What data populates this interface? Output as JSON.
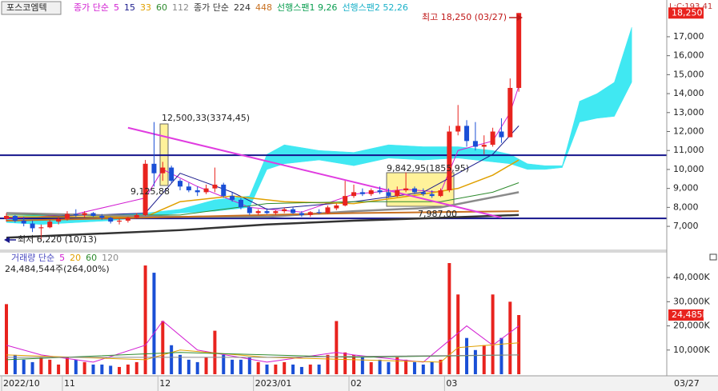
{
  "chart_data": {
    "type": "candlestick",
    "stock_name": "포스코엠텍",
    "note": "L:C:193,41",
    "categories": [
      "2022/10",
      null,
      null,
      null,
      null,
      null,
      null,
      "11",
      null,
      null,
      null,
      null,
      null,
      null,
      null,
      null,
      null,
      null,
      "12",
      null,
      null,
      null,
      null,
      null,
      null,
      null,
      null,
      null,
      null,
      "2023/01",
      null,
      null,
      null,
      null,
      null,
      null,
      null,
      null,
      null,
      null,
      "02",
      null,
      null,
      null,
      null,
      null,
      null,
      null,
      null,
      null,
      null,
      "03",
      null,
      null,
      null,
      null,
      null,
      null,
      null,
      null
    ],
    "last_date": "03/27",
    "open": [
      7400,
      7550,
      7300,
      7150,
      6900,
      6950,
      7250,
      7400,
      7650,
      7600,
      7700,
      7550,
      7450,
      7250,
      7300,
      7450,
      7600,
      10300,
      9800,
      10100,
      9400,
      9100,
      8900,
      8800,
      9000,
      9200,
      8600,
      8400,
      8000,
      7700,
      7800,
      7700,
      7800,
      7900,
      7700,
      7600,
      7750,
      7700,
      7950,
      8100,
      8600,
      8800,
      8700,
      8900,
      8800,
      8600,
      8900,
      9000,
      8800,
      8700,
      8600,
      8900,
      12000,
      12300,
      11500,
      11200,
      11300,
      12000,
      11700,
      14300
    ],
    "high": [
      7700,
      7600,
      7500,
      7300,
      7100,
      7350,
      7500,
      7800,
      7900,
      7800,
      7750,
      7650,
      7500,
      7400,
      7500,
      7700,
      10500,
      12500,
      10400,
      10200,
      9500,
      9300,
      9100,
      9200,
      10100,
      9300,
      8800,
      8500,
      8100,
      7900,
      7950,
      7850,
      8000,
      8000,
      7800,
      7800,
      7900,
      8100,
      8200,
      9400,
      9200,
      9000,
      9000,
      9100,
      9000,
      9100,
      9843,
      9100,
      9000,
      8900,
      9000,
      12300,
      13400,
      12600,
      12500,
      11800,
      12200,
      12700,
      14800,
      18250
    ],
    "low": [
      7250,
      7200,
      7000,
      6700,
      6220,
      6900,
      7100,
      7300,
      7500,
      7450,
      7500,
      7350,
      7150,
      7100,
      7200,
      7400,
      7550,
      9100,
      9400,
      9300,
      8900,
      8800,
      8600,
      8700,
      8800,
      8500,
      8300,
      7900,
      7600,
      7600,
      7650,
      7600,
      7700,
      7650,
      7500,
      7500,
      7650,
      7650,
      7850,
      8050,
      8500,
      8600,
      8600,
      8700,
      8500,
      8550,
      8800,
      8700,
      8600,
      8500,
      8550,
      8800,
      11800,
      11200,
      11000,
      10800,
      11200,
      11400,
      11700,
      14100
    ],
    "close": [
      7550,
      7300,
      7150,
      6900,
      6950,
      7250,
      7400,
      7650,
      7600,
      7700,
      7550,
      7450,
      7250,
      7300,
      7450,
      7600,
      10300,
      9800,
      10100,
      9400,
      9100,
      8900,
      8800,
      9000,
      9200,
      8600,
      8400,
      8000,
      7700,
      7800,
      7700,
      7800,
      7900,
      7700,
      7600,
      7750,
      7700,
      8000,
      8100,
      8600,
      8800,
      8700,
      8900,
      8800,
      8600,
      8900,
      9000,
      8800,
      8700,
      8600,
      8900,
      12000,
      12300,
      11500,
      11200,
      11300,
      12000,
      11700,
      14300,
      18250
    ],
    "up_color": "#e8231e",
    "down_color": "#1a4fd6",
    "ylim": [
      5780,
      18600
    ],
    "yticks": [
      {
        "value": 7000,
        "label": "7,000"
      },
      {
        "value": 8000,
        "label": "8,000"
      },
      {
        "value": 9000,
        "label": "9,000"
      },
      {
        "value": 10000,
        "label": "10,000"
      },
      {
        "value": 11000,
        "label": "11,000"
      },
      {
        "value": 12000,
        "label": "12,000"
      },
      {
        "value": 13000,
        "label": "13,000"
      },
      {
        "value": 14000,
        "label": "14,000"
      },
      {
        "value": 15000,
        "label": "15,000"
      },
      {
        "value": 16000,
        "label": "16,000"
      },
      {
        "value": 17000,
        "label": "17,000"
      }
    ],
    "price_tag": {
      "value": 18250,
      "label": "18,250"
    },
    "ma_groups": [
      {
        "label": "종가 단순",
        "color": "#d21ed2",
        "lines": [
          {
            "name": "5",
            "color": "#d21ed2",
            "width": 1,
            "x": [
              0,
              8,
              16,
              18,
              22,
              28,
              34,
              40,
              46,
              50,
              52,
              56,
              58,
              59
            ],
            "values": [
              7400,
              7650,
              8500,
              10000,
              9100,
              8000,
              7750,
              8700,
              8950,
              8800,
              11000,
              11500,
              13000,
              14400
            ]
          },
          {
            "name": "15",
            "color": "#1a1a8c",
            "width": 1,
            "x": [
              0,
              10,
              16,
              20,
              26,
              30,
              40,
              48,
              52,
              56,
              59
            ],
            "values": [
              7450,
              7600,
              7700,
              9800,
              8800,
              7900,
              8300,
              8800,
              9800,
              10800,
              12300
            ]
          },
          {
            "name": "33",
            "color": "#e0a000",
            "width": 1.5,
            "x": [
              0,
              16,
              20,
              26,
              32,
              40,
              48,
              52,
              56,
              59
            ],
            "values": [
              7500,
              7500,
              8300,
              8600,
              8300,
              8200,
              8700,
              9000,
              9700,
              10500
            ]
          },
          {
            "name": "60",
            "color": "#2e8b2e",
            "width": 1,
            "x": [
              0,
              20,
              30,
              40,
              50,
              56,
              59
            ],
            "values": [
              7600,
              7600,
              8200,
              8300,
              8300,
              8800,
              9300
            ]
          },
          {
            "name": "112",
            "color": "#8a8a8a",
            "width": 2.5,
            "x": [
              0,
              20,
              30,
              40,
              50,
              59
            ],
            "values": [
              7700,
              7500,
              7500,
              7800,
              8000,
              8800
            ]
          }
        ]
      },
      {
        "label": "종가 단순",
        "color": "#333333",
        "lines": [
          {
            "name": "224",
            "color": "#333333",
            "width": 2.5,
            "x": [
              0,
              20,
              30,
              40,
              50,
              59
            ],
            "values": [
              6400,
              6800,
              7100,
              7300,
              7450,
              7600
            ]
          },
          {
            "name": "448",
            "color": "#c87020",
            "width": 2,
            "x": [
              0,
              20,
              40,
              59
            ],
            "values": [
              7300,
              7500,
              7700,
              7800
            ]
          }
        ]
      }
    ],
    "ichimoku": {
      "x": [
        0,
        4,
        8,
        12,
        16,
        20,
        24,
        28,
        30,
        32,
        36,
        40,
        44,
        48,
        52,
        56,
        58,
        60,
        62,
        64,
        66,
        68,
        70,
        72
      ],
      "fill": "#40e8f2",
      "span1": {
        "name": "선행스팬1 9,26",
        "color": "#0a9e50",
        "values": [
          7200,
          7100,
          7200,
          7300,
          7500,
          7700,
          7800,
          8000,
          10000,
          10300,
          10500,
          10200,
          10600,
          10500,
          10600,
          10400,
          10300,
          10000,
          10000,
          10100,
          12500,
          12700,
          12800,
          14600
        ]
      },
      "span2": {
        "name": "선행스팬2 52,26",
        "color": "#18b0c8",
        "values": [
          7500,
          7600,
          7500,
          7600,
          7700,
          7900,
          8400,
          8600,
          10800,
          11300,
          11000,
          10900,
          11300,
          11200,
          11200,
          11000,
          10800,
          10300,
          10200,
          10200,
          13600,
          14000,
          14600,
          17500
        ]
      }
    },
    "hlines": {
      "color": "#14148c",
      "values": [
        10750,
        7420
      ]
    },
    "trendline": {
      "color": "#e03ce0",
      "x": [
        14,
        57
      ],
      "values": [
        12200,
        7460
      ]
    },
    "annotations": [
      "최고 18,250 (03/27)",
      "12,500,33(3374,45)",
      "9,125,88",
      "9,842,95(1855,95)",
      "7,987,00",
      "최저 6,220 (10/13)"
    ],
    "volume": {
      "label": "거래량 단순",
      "label_color": "#4a4ac0",
      "summary": "24,484,544주(264,00%)",
      "values": [
        29000,
        8000,
        6000,
        5000,
        7000,
        6000,
        4000,
        7000,
        6000,
        5000,
        4000,
        4000,
        3500,
        3000,
        4000,
        5000,
        45000,
        42000,
        22000,
        12000,
        8000,
        6000,
        5000,
        7000,
        18000,
        8000,
        6000,
        6000,
        7000,
        5000,
        4000,
        4000,
        5000,
        4000,
        3000,
        4000,
        4000,
        8000,
        22000,
        9000,
        8000,
        7000,
        5000,
        6000,
        5000,
        7000,
        6000,
        5000,
        4000,
        5000,
        6000,
        46000,
        33000,
        15000,
        10000,
        12000,
        33000,
        15000,
        30000,
        24485
      ],
      "ylim": [
        0,
        50300
      ],
      "yticks": [
        {
          "value": 10000,
          "label": "10,000K"
        },
        {
          "value": 20000,
          "label": "20,000K"
        },
        {
          "value": 30000,
          "label": "30,000K"
        },
        {
          "value": 40000,
          "label": "40,000K"
        }
      ],
      "tag": {
        "value": 24485,
        "label": "24,485K"
      },
      "ma": [
        {
          "name": "5",
          "color": "#d21ed2",
          "x": [
            0,
            4,
            10,
            16,
            18,
            22,
            30,
            38,
            40,
            48,
            51,
            53,
            56,
            59
          ],
          "values": [
            12000,
            8000,
            5000,
            12000,
            22000,
            10000,
            5000,
            9000,
            8000,
            5000,
            14000,
            20000,
            12000,
            20000
          ]
        },
        {
          "name": "20",
          "color": "#e0a000",
          "x": [
            0,
            16,
            20,
            30,
            40,
            50,
            52,
            59
          ],
          "values": [
            8000,
            6000,
            10000,
            7000,
            6000,
            5000,
            11000,
            13000
          ]
        },
        {
          "name": "60",
          "color": "#2e8b2e",
          "x": [
            0,
            20,
            40,
            59
          ],
          "values": [
            6000,
            9000,
            7000,
            8000
          ]
        },
        {
          "name": "120",
          "color": "#8a8a8a",
          "x": [
            0,
            30,
            59
          ],
          "values": [
            7000,
            7000,
            8000
          ]
        }
      ]
    }
  }
}
